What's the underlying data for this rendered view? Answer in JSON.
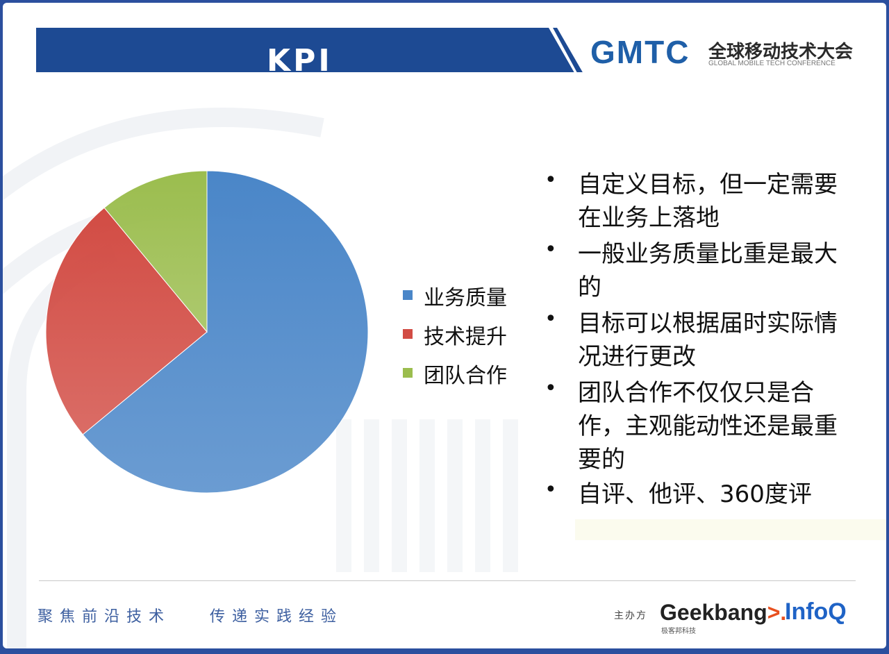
{
  "slide": {
    "title": "KPI",
    "logo": {
      "mark": "GMTC",
      "name_cn": "全球移动技术大会",
      "name_en": "GLOBAL MOBILE TECH CONFERENCE"
    },
    "bullets": [
      "自定义目标，但一定需要在业务上落地",
      "一般业务质量比重是最大的",
      "目标可以根据届时实际情况进行更改",
      "团队合作不仅仅只是合作，主观能动性还是最重要的",
      "自评、他评、360度评"
    ],
    "footer": {
      "slogan_left": "聚焦前沿技术",
      "slogan_right": "传递实践经验",
      "organizer_label": "主办方",
      "geekbang": "Geekbang",
      "geekbang_suffix": ">.",
      "geekbang_sub": "极客邦科技",
      "infoq": "InfoQ"
    }
  },
  "colors": {
    "brand_blue": "#1d4a93",
    "accent_cyan": "#2aa3e0"
  },
  "chart_data": {
    "type": "pie",
    "categories": [
      "业务质量",
      "技术提升",
      "团队合作"
    ],
    "values": [
      64,
      25,
      11
    ],
    "colors": [
      "#4a86c8",
      "#d24c44",
      "#9bbd4e"
    ],
    "legend_position": "right",
    "title": ""
  }
}
